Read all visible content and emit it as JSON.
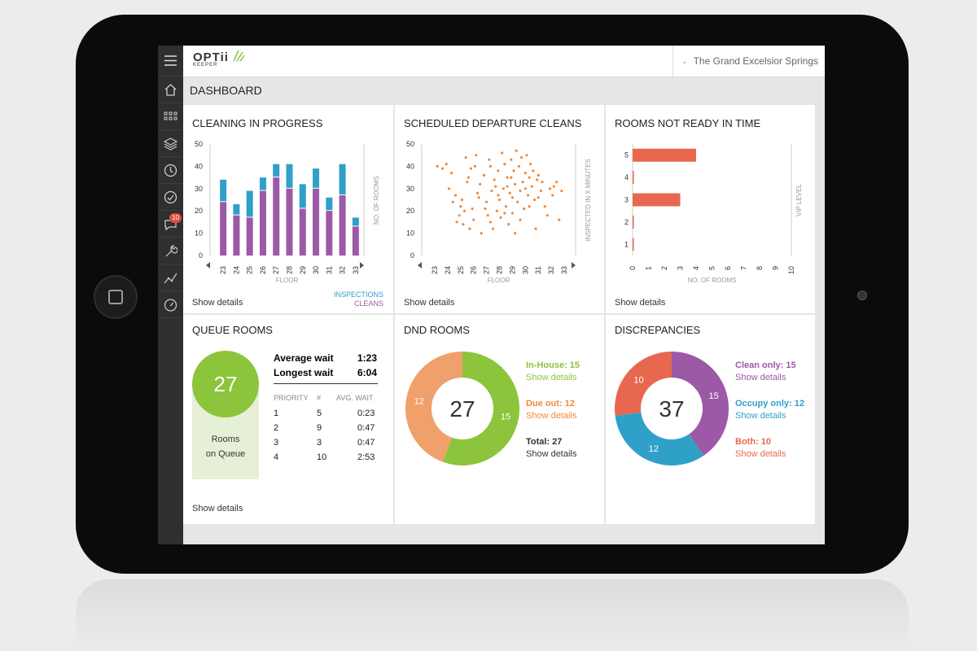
{
  "header": {
    "logo_text": "OPTii",
    "logo_sub": "KEEPER",
    "hotel_name": "The Grand Excelsior Springs"
  },
  "page_title": "DASHBOARD",
  "sidebar": {
    "items": [
      {
        "icon": "menu-icon"
      },
      {
        "icon": "home-icon"
      },
      {
        "icon": "grid-icon"
      },
      {
        "icon": "layers-icon"
      },
      {
        "icon": "clock-icon"
      },
      {
        "icon": "check-circle-icon"
      },
      {
        "icon": "chat-icon",
        "badge": "10"
      },
      {
        "icon": "wrench-icon"
      },
      {
        "icon": "trend-icon"
      },
      {
        "icon": "gauge-icon"
      }
    ]
  },
  "colors": {
    "purple": "#9b59a6",
    "blue": "#2fa0c8",
    "orange": "#f08a3c",
    "red": "#e8684f",
    "green": "#8cc43c",
    "peach": "#f0a06a"
  },
  "panels": {
    "cleaning": {
      "title": "CLEANING IN PROGRESS",
      "show": "Show details",
      "legend_inspections": "INSPECTIONS",
      "legend_cleans": "CLEANS"
    },
    "scheduled": {
      "title": "SCHEDULED DEPARTURE CLEANS",
      "show": "Show details"
    },
    "notready": {
      "title": "ROOMS NOT READY IN TIME",
      "show": "Show details"
    },
    "queue": {
      "title": "QUEUE ROOMS",
      "count": "27",
      "caption_line1": "Rooms",
      "caption_line2": "on Queue",
      "avg_label": "Average wait",
      "avg_value": "1:23",
      "long_label": "Longest wait",
      "long_value": "6:04",
      "col_priority": "PRIORITY",
      "col_count": "#",
      "col_wait": "AVG. WAIT",
      "rows": [
        {
          "priority": "1",
          "count": "5",
          "wait": "0:23"
        },
        {
          "priority": "2",
          "count": "9",
          "wait": "0:47"
        },
        {
          "priority": "3",
          "count": "3",
          "wait": "0:47"
        },
        {
          "priority": "4",
          "count": "10",
          "wait": "2:53"
        }
      ],
      "show": "Show details"
    },
    "dnd": {
      "title": "DND ROOMS",
      "center": "27",
      "inhouse_label": "In-House: 15",
      "inhouse_show": "Show details",
      "dueout_label": "Due out: 12",
      "dueout_show": "Show details",
      "total_label": "Total: 27",
      "total_show": "Show details",
      "seg_inhouse": "15",
      "seg_dueout": "12"
    },
    "disc": {
      "title": "DISCREPANCIES",
      "center": "37",
      "clean_label": "Clean only: 15",
      "clean_show": "Show details",
      "occupy_label": "Occupy only: 12",
      "occupy_show": "Show details",
      "both_label": "Both: 10",
      "both_show": "Show details",
      "seg_clean": "15",
      "seg_occupy": "12",
      "seg_both": "10"
    }
  },
  "chart_data": [
    {
      "type": "bar",
      "title": "CLEANING IN PROGRESS",
      "xlabel": "FLOOR",
      "ylabel": "NO. OF ROOMS",
      "categories": [
        "23",
        "24",
        "25",
        "26",
        "27",
        "28",
        "29",
        "30",
        "31",
        "32",
        "33"
      ],
      "ylim": [
        0,
        50
      ],
      "yticks": [
        "0",
        "10",
        "20",
        "30",
        "40",
        "50"
      ],
      "series": [
        {
          "name": "CLEANS",
          "values": [
            24,
            18,
            17,
            29,
            35,
            30,
            21,
            30,
            20,
            27,
            13
          ]
        },
        {
          "name": "INSPECTIONS",
          "values": [
            10,
            5,
            12,
            6,
            6,
            11,
            11,
            9,
            6,
            14,
            4
          ]
        }
      ]
    },
    {
      "type": "scatter",
      "title": "SCHEDULED DEPARTURE CLEANS",
      "xlabel": "FLOOR",
      "ylabel": "INSPECTED IN X MINUTES",
      "xticks": [
        "23",
        "24",
        "25",
        "26",
        "27",
        "28",
        "29",
        "30",
        "31",
        "32",
        "33"
      ],
      "yticks": [
        "0",
        "10",
        "20",
        "30",
        "40",
        "50"
      ],
      "xlim": [
        22.5,
        33.5
      ],
      "ylim": [
        0,
        50
      ],
      "points": [
        [
          23.2,
          40
        ],
        [
          23.6,
          39
        ],
        [
          23.9,
          41
        ],
        [
          24.3,
          37
        ],
        [
          24.1,
          30
        ],
        [
          24.6,
          27
        ],
        [
          24.7,
          15
        ],
        [
          24.9,
          18
        ],
        [
          25.0,
          22
        ],
        [
          25.2,
          14
        ],
        [
          25.4,
          44
        ],
        [
          25.5,
          33
        ],
        [
          25.7,
          12
        ],
        [
          25.9,
          21
        ],
        [
          25.8,
          39
        ],
        [
          26.0,
          16
        ],
        [
          26.2,
          45
        ],
        [
          26.4,
          26
        ],
        [
          26.5,
          32
        ],
        [
          26.6,
          10
        ],
        [
          26.8,
          36
        ],
        [
          27.0,
          24
        ],
        [
          27.1,
          18
        ],
        [
          27.2,
          43
        ],
        [
          27.3,
          40
        ],
        [
          27.4,
          29
        ],
        [
          27.5,
          12
        ],
        [
          27.6,
          34
        ],
        [
          27.8,
          20
        ],
        [
          27.9,
          38
        ],
        [
          28.0,
          25
        ],
        [
          28.1,
          17
        ],
        [
          28.2,
          46
        ],
        [
          28.3,
          30
        ],
        [
          28.4,
          41
        ],
        [
          28.5,
          22
        ],
        [
          28.6,
          35
        ],
        [
          28.7,
          14
        ],
        [
          28.8,
          28
        ],
        [
          28.9,
          43
        ],
        [
          29.0,
          19
        ],
        [
          29.1,
          38
        ],
        [
          29.2,
          32
        ],
        [
          29.3,
          47
        ],
        [
          29.4,
          24
        ],
        [
          29.5,
          40
        ],
        [
          29.6,
          29
        ],
        [
          29.7,
          44
        ],
        [
          29.8,
          33
        ],
        [
          29.9,
          21
        ],
        [
          30.0,
          37
        ],
        [
          30.1,
          45
        ],
        [
          30.2,
          27
        ],
        [
          30.3,
          35
        ],
        [
          30.4,
          41
        ],
        [
          30.5,
          31
        ],
        [
          30.6,
          38
        ],
        [
          30.7,
          25
        ],
        [
          30.8,
          12
        ],
        [
          30.9,
          34
        ],
        [
          31.0,
          26
        ],
        [
          31.2,
          29
        ],
        [
          31.3,
          33
        ],
        [
          31.5,
          22
        ],
        [
          31.7,
          18
        ],
        [
          31.9,
          30
        ],
        [
          32.1,
          27
        ],
        [
          32.2,
          31
        ],
        [
          32.4,
          33
        ],
        [
          32.6,
          16
        ],
        [
          32.8,
          29
        ],
        [
          25.1,
          25
        ],
        [
          26.3,
          28
        ],
        [
          27.7,
          31
        ],
        [
          28.4,
          19
        ],
        [
          29.0,
          26
        ],
        [
          29.6,
          16
        ],
        [
          30.3,
          22
        ],
        [
          26.9,
          21
        ],
        [
          25.6,
          35
        ],
        [
          24.4,
          24
        ],
        [
          28.9,
          35
        ],
        [
          27.3,
          15
        ],
        [
          26.1,
          40
        ],
        [
          30.0,
          30
        ],
        [
          31.0,
          36
        ],
        [
          29.2,
          10
        ],
        [
          25.3,
          20
        ],
        [
          27.9,
          27
        ],
        [
          28.6,
          31
        ]
      ]
    },
    {
      "type": "bar",
      "title": "ROOMS NOT READY IN TIME",
      "xlabel": "NO. OF ROOMS",
      "ylabel": "VIP LEVEL",
      "categories": [
        "5",
        "4",
        "3",
        "2",
        "1"
      ],
      "values": [
        4,
        0,
        3,
        0,
        0
      ],
      "xlim": [
        0,
        10
      ],
      "xticks": [
        "0",
        "1",
        "2",
        "3",
        "4",
        "5",
        "6",
        "7",
        "8",
        "9",
        "10"
      ]
    },
    {
      "type": "pie",
      "title": "DND ROOMS",
      "categories": [
        "In-House",
        "Due out"
      ],
      "values": [
        15,
        12
      ],
      "total": 27
    },
    {
      "type": "pie",
      "title": "DISCREPANCIES",
      "categories": [
        "Clean only",
        "Occupy only",
        "Both"
      ],
      "values": [
        15,
        12,
        10
      ],
      "total": 37
    }
  ]
}
